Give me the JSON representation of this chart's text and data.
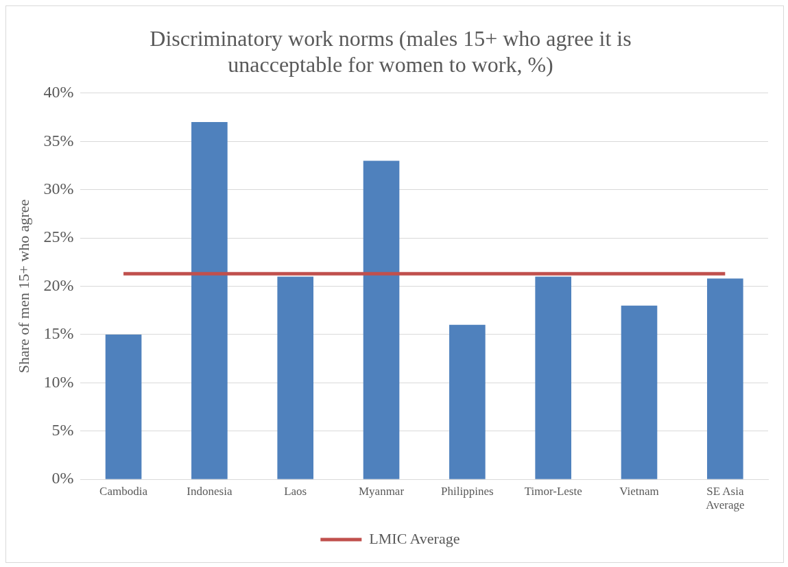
{
  "chart_data": {
    "type": "bar",
    "title": "Discriminatory work norms (males 15+ who agree it is unacceptable for women to work, %)",
    "ylabel": "Share of men 15+ who agree",
    "categories": [
      "Cambodia",
      "Indonesia",
      "Laos",
      "Myanmar",
      "Philippines",
      "Timor-Leste",
      "Vietnam",
      "SE Asia Average"
    ],
    "series": [
      {
        "color": "#4f81bd",
        "values": [
          15,
          37,
          21,
          33,
          16,
          21,
          18,
          20.8
        ]
      },
      {
        "type": "line",
        "name": "LMIC Average",
        "color": "#c0504d",
        "values": [
          21.3,
          21.3,
          21.3,
          21.3,
          21.3,
          21.3,
          21.3,
          21.3
        ]
      }
    ],
    "ylim": [
      0,
      40
    ],
    "yticks": [
      {
        "value": 0,
        "label": "0%"
      },
      {
        "value": 5,
        "label": "5%"
      },
      {
        "value": 10,
        "label": "10%"
      },
      {
        "value": 15,
        "label": "15%"
      },
      {
        "value": 20,
        "label": "20%"
      },
      {
        "value": 25,
        "label": "25%"
      },
      {
        "value": 30,
        "label": "30%"
      },
      {
        "value": 35,
        "label": "35%"
      },
      {
        "value": 40,
        "label": "40%"
      }
    ],
    "grid": "y",
    "legend": "bottom",
    "marker": "none"
  }
}
